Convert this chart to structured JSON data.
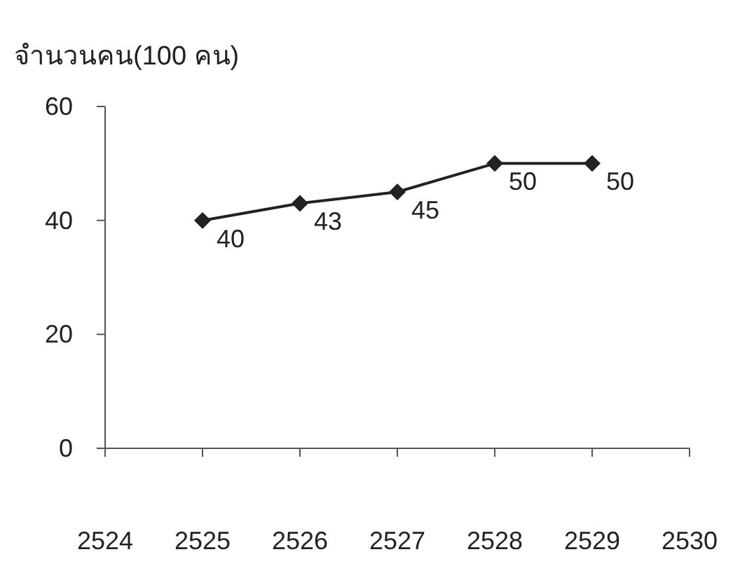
{
  "chart_data": {
    "type": "line",
    "ylabel": "จำนวนคน(100 คน)",
    "x": [
      2525,
      2526,
      2527,
      2528,
      2529
    ],
    "series": [
      {
        "color": "#222222",
        "values": [
          40,
          43,
          45,
          50,
          50
        ]
      }
    ],
    "xlim": [
      2524,
      2530
    ],
    "xticks": [
      2524,
      2525,
      2526,
      2527,
      2528,
      2529,
      2530
    ],
    "ylim": [
      0,
      60
    ],
    "yticks": [
      0,
      20,
      40,
      60
    ],
    "marker": "diamond",
    "line_style": "solid",
    "data_labels": true
  }
}
